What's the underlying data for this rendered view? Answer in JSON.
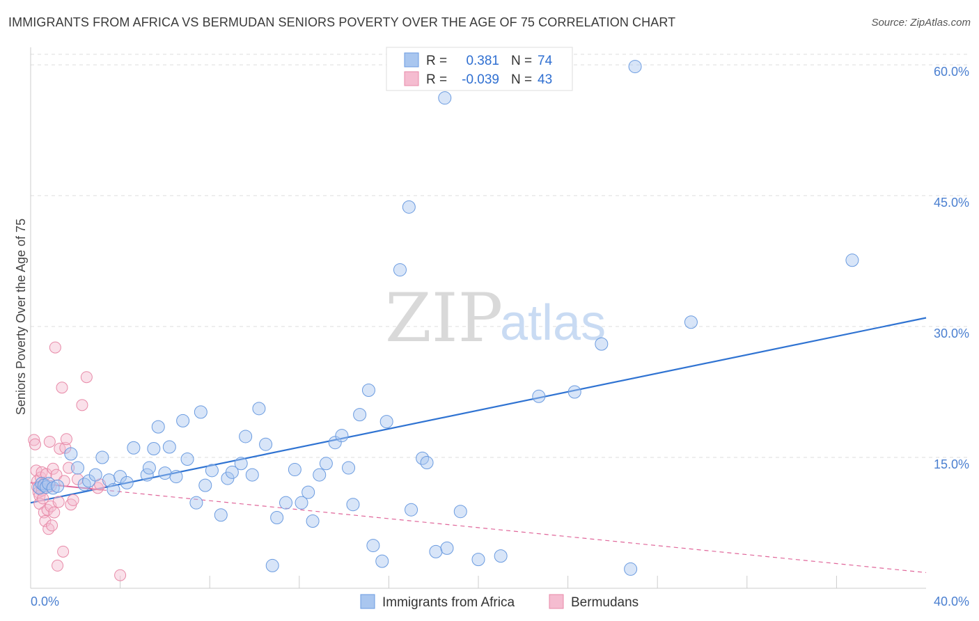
{
  "title": "IMMIGRANTS FROM AFRICA VS BERMUDAN SENIORS POVERTY OVER THE AGE OF 75 CORRELATION CHART",
  "source": "Source: ZipAtlas.com",
  "watermark": {
    "zip": "ZIP",
    "atlas": "atlas"
  },
  "colors": {
    "blue": "#6a9be0",
    "blue_fill": "#a9c6ef",
    "pink": "#e88aa8",
    "pink_fill": "#f5bcd0",
    "blue_line": "#2f73d2",
    "pink_line": "#e0669a",
    "tick_text": "#4a7fd0"
  },
  "legend_top": {
    "rows": [
      {
        "r_label": "R =",
        "r_value": "0.381",
        "n_label": "N =",
        "n_value": "74"
      },
      {
        "r_label": "R =",
        "r_value": "-0.039",
        "n_label": "N =",
        "n_value": "43"
      }
    ]
  },
  "legend_bottom": {
    "series": [
      "Immigrants from Africa",
      "Bermudans"
    ]
  },
  "chart_data": {
    "type": "scatter",
    "xlabel": "",
    "ylabel": "Seniors Poverty Over the Age of 75",
    "xlim": [
      0,
      40
    ],
    "ylim": [
      0,
      62
    ],
    "x_tick_labels": [
      "0.0%",
      "40.0%"
    ],
    "y_ticks": [
      15,
      30,
      45,
      60
    ],
    "y_tick_labels": [
      "15.0%",
      "30.0%",
      "45.0%",
      "60.0%"
    ],
    "grid": true,
    "series": [
      {
        "name": "Immigrants from Africa",
        "points": [
          [
            0.4,
            11.5
          ],
          [
            0.5,
            12.0
          ],
          [
            0.6,
            11.8
          ],
          [
            0.7,
            11.6
          ],
          [
            0.8,
            12.0
          ],
          [
            1.0,
            11.5
          ],
          [
            1.2,
            11.7
          ],
          [
            1.8,
            15.4
          ],
          [
            2.1,
            13.8
          ],
          [
            2.4,
            11.9
          ],
          [
            2.6,
            12.3
          ],
          [
            2.9,
            13.0
          ],
          [
            3.2,
            15.0
          ],
          [
            3.5,
            12.4
          ],
          [
            3.7,
            11.3
          ],
          [
            4.0,
            12.8
          ],
          [
            4.3,
            12.1
          ],
          [
            4.6,
            16.1
          ],
          [
            5.2,
            13.0
          ],
          [
            5.3,
            13.8
          ],
          [
            5.5,
            16.0
          ],
          [
            5.7,
            18.5
          ],
          [
            6.0,
            13.2
          ],
          [
            6.2,
            16.2
          ],
          [
            6.5,
            12.8
          ],
          [
            6.8,
            19.2
          ],
          [
            7.0,
            14.8
          ],
          [
            7.4,
            9.8
          ],
          [
            7.6,
            20.2
          ],
          [
            7.8,
            11.8
          ],
          [
            8.1,
            13.5
          ],
          [
            8.5,
            8.4
          ],
          [
            8.8,
            12.6
          ],
          [
            9.0,
            13.3
          ],
          [
            9.4,
            14.3
          ],
          [
            9.6,
            17.4
          ],
          [
            9.9,
            13.0
          ],
          [
            10.2,
            20.6
          ],
          [
            10.5,
            16.5
          ],
          [
            10.8,
            2.6
          ],
          [
            11.0,
            8.1
          ],
          [
            11.4,
            9.8
          ],
          [
            11.8,
            13.6
          ],
          [
            12.1,
            9.8
          ],
          [
            12.4,
            11.0
          ],
          [
            12.6,
            7.7
          ],
          [
            12.9,
            13.0
          ],
          [
            13.2,
            14.3
          ],
          [
            13.6,
            16.7
          ],
          [
            13.9,
            17.5
          ],
          [
            14.2,
            13.8
          ],
          [
            14.4,
            9.6
          ],
          [
            14.7,
            19.9
          ],
          [
            15.1,
            22.7
          ],
          [
            15.3,
            4.9
          ],
          [
            15.7,
            3.1
          ],
          [
            15.9,
            19.1
          ],
          [
            16.5,
            36.5
          ],
          [
            16.9,
            43.7
          ],
          [
            17.0,
            9.0
          ],
          [
            17.5,
            14.9
          ],
          [
            17.7,
            14.4
          ],
          [
            18.1,
            4.2
          ],
          [
            18.6,
            4.6
          ],
          [
            18.5,
            56.2
          ],
          [
            19.2,
            8.8
          ],
          [
            20.0,
            3.3
          ],
          [
            21.0,
            3.7
          ],
          [
            22.7,
            22.0
          ],
          [
            24.3,
            22.5
          ],
          [
            25.5,
            28.0
          ],
          [
            26.8,
            2.2
          ],
          [
            27.0,
            59.8
          ],
          [
            29.5,
            30.5
          ],
          [
            36.7,
            37.6
          ]
        ],
        "trend": {
          "x": [
            0,
            40
          ],
          "y": [
            9.8,
            31.0
          ]
        }
      },
      {
        "name": "Bermudans",
        "points": [
          [
            0.15,
            17.0
          ],
          [
            0.2,
            16.5
          ],
          [
            0.25,
            13.5
          ],
          [
            0.3,
            12.3
          ],
          [
            0.3,
            11.6
          ],
          [
            0.35,
            11.0
          ],
          [
            0.4,
            10.6
          ],
          [
            0.4,
            9.7
          ],
          [
            0.45,
            12.7
          ],
          [
            0.5,
            11.2
          ],
          [
            0.5,
            13.3
          ],
          [
            0.55,
            10.3
          ],
          [
            0.6,
            8.7
          ],
          [
            0.6,
            12.0
          ],
          [
            0.65,
            7.7
          ],
          [
            0.7,
            13.1
          ],
          [
            0.75,
            9.0
          ],
          [
            0.8,
            6.8
          ],
          [
            0.85,
            16.8
          ],
          [
            0.9,
            11.7
          ],
          [
            0.9,
            9.4
          ],
          [
            0.95,
            7.2
          ],
          [
            1.0,
            13.7
          ],
          [
            1.05,
            8.7
          ],
          [
            1.1,
            27.6
          ],
          [
            1.15,
            13.0
          ],
          [
            1.2,
            2.6
          ],
          [
            1.25,
            9.9
          ],
          [
            1.3,
            16.0
          ],
          [
            1.4,
            23.0
          ],
          [
            1.45,
            4.2
          ],
          [
            1.5,
            12.3
          ],
          [
            1.55,
            16.1
          ],
          [
            1.6,
            17.1
          ],
          [
            1.7,
            13.8
          ],
          [
            1.8,
            9.6
          ],
          [
            1.9,
            10.1
          ],
          [
            2.1,
            12.5
          ],
          [
            2.3,
            21.0
          ],
          [
            2.5,
            24.2
          ],
          [
            3.0,
            11.5
          ],
          [
            3.1,
            11.9
          ],
          [
            4.0,
            1.5
          ]
        ],
        "trend": {
          "x": [
            0,
            40
          ],
          "y": [
            12.1,
            1.8
          ]
        }
      }
    ]
  }
}
